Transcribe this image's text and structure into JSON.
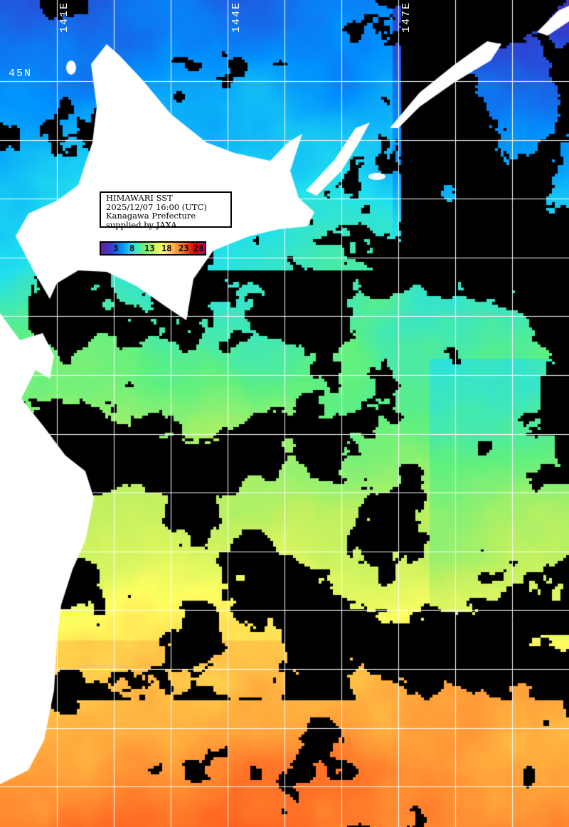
{
  "title": "HIMAWARI SST",
  "datetime": "2025/12/07 16:00 (UTC)",
  "organization": "Kanagawa Prefecture",
  "credit": "supplied by JAXA",
  "longitude_labels": [
    "141E",
    "144E",
    "147E"
  ],
  "latitude_labels": [
    "45N"
  ],
  "colorbar": {
    "unit_hint": "degC",
    "tick_labels": [
      "3",
      "8",
      "13",
      "18",
      "23",
      "28"
    ],
    "colors": [
      "#6a1b9a",
      "#3040d0",
      "#0090ff",
      "#20e0f0",
      "#60f080",
      "#c0f060",
      "#ffff60",
      "#ffb040",
      "#ff6020",
      "#e00000",
      "#c00060"
    ]
  },
  "legend": {
    "land_color": "#ffffff",
    "cloud_color": "#000000",
    "grid_color": "#ffffff"
  }
}
